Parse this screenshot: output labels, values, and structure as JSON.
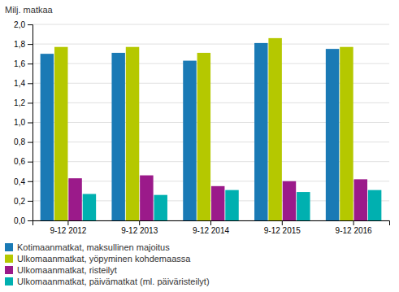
{
  "chart_data": {
    "type": "bar",
    "ylabel": "Milj. matkaa",
    "categories": [
      "9-12 2012",
      "9-12 2013",
      "9-12 2014",
      "9-12 2015",
      "9-12 2016"
    ],
    "series": [
      {
        "name": "Kotimaanmatkat, maksullinen majoitus",
        "color": "#1a7ab5",
        "values": [
          1.7,
          1.71,
          1.63,
          1.81,
          1.75
        ]
      },
      {
        "name": "Ulkomaanmatkat, yöpyminen kohdemaassa",
        "color": "#b5c800",
        "values": [
          1.77,
          1.77,
          1.71,
          1.86,
          1.77
        ]
      },
      {
        "name": "Ulkomaanmatkat, risteilyt",
        "color": "#9b1a8a",
        "values": [
          0.43,
          0.46,
          0.35,
          0.4,
          0.42
        ]
      },
      {
        "name": "Ulkomaanmatkat, päivämatkat (ml. päiväristeilyt)",
        "color": "#00b0b0",
        "values": [
          0.27,
          0.26,
          0.31,
          0.29,
          0.31
        ]
      }
    ],
    "ylim": [
      0.0,
      2.0
    ],
    "yticks": [
      {
        "value": 0.0,
        "label": "0,0"
      },
      {
        "value": 0.2,
        "label": "0,2"
      },
      {
        "value": 0.4,
        "label": "0,4"
      },
      {
        "value": 0.6,
        "label": "0,6"
      },
      {
        "value": 0.8,
        "label": "0,8"
      },
      {
        "value": 1.0,
        "label": "1,0"
      },
      {
        "value": 1.2,
        "label": "1,2"
      },
      {
        "value": 1.4,
        "label": "1,4"
      },
      {
        "value": 1.6,
        "label": "1,6"
      },
      {
        "value": 1.8,
        "label": "1,8"
      },
      {
        "value": 2.0,
        "label": "2,0"
      }
    ],
    "grid": true,
    "legend": "bottom"
  }
}
